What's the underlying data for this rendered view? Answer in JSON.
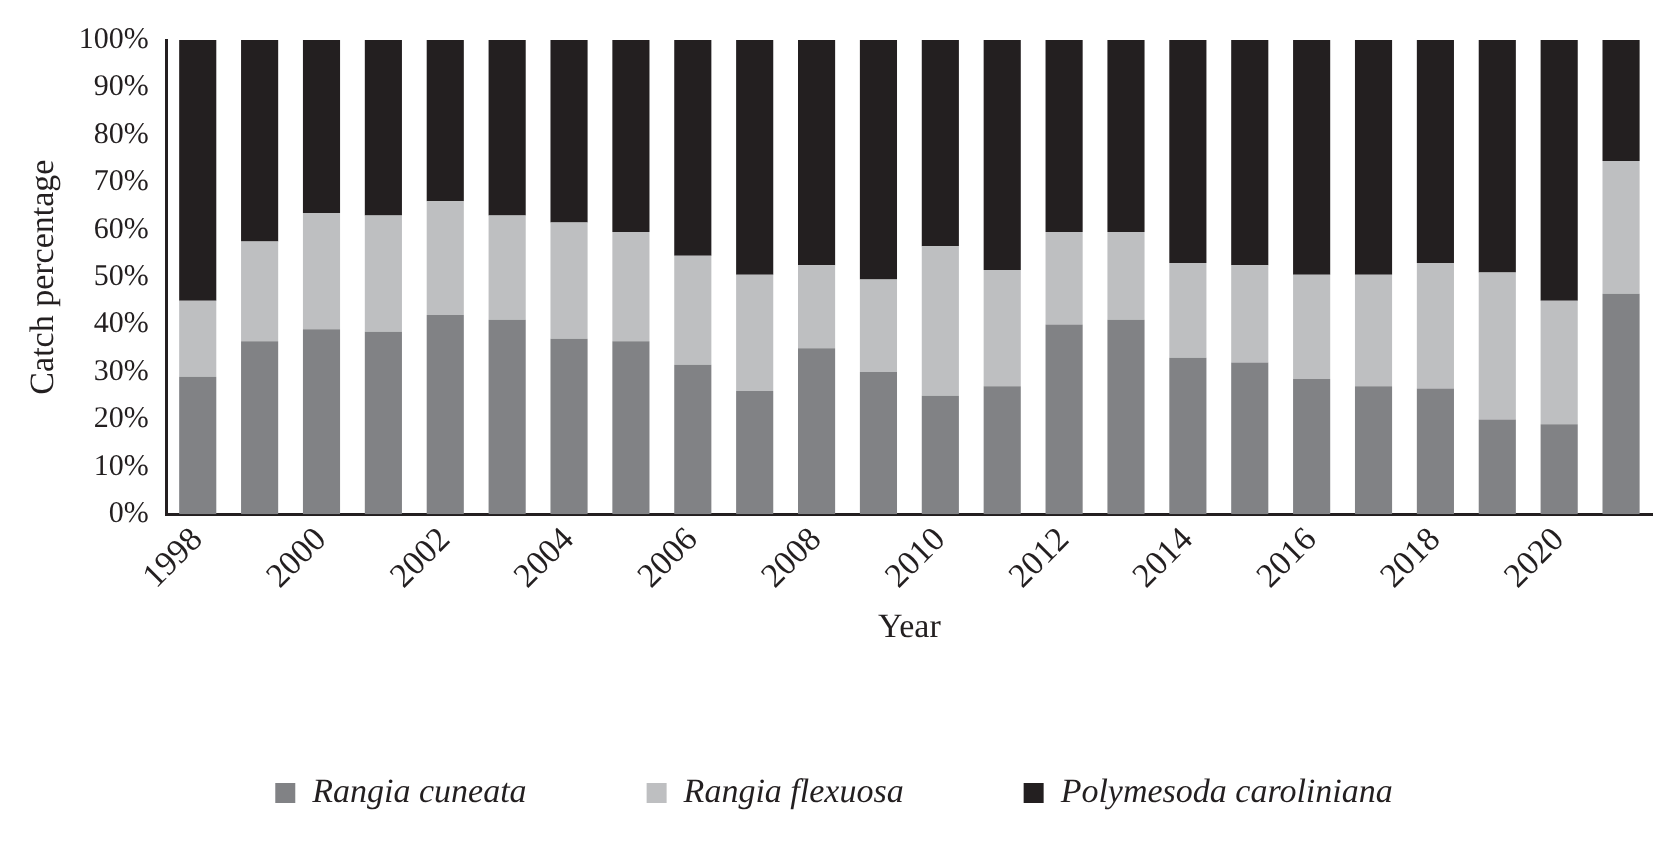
{
  "chart_data": {
    "type": "bar",
    "stacked": true,
    "xlabel": "Year",
    "ylabel": "Catch percentage",
    "legend": "bottom",
    "grid": false,
    "categories": [
      "1998",
      null,
      "2000",
      null,
      "2002",
      null,
      "2004",
      null,
      "2006",
      null,
      "2008",
      null,
      "2010",
      null,
      "2012",
      null,
      "2014",
      null,
      "2016",
      null,
      "2018",
      null,
      "2020",
      null
    ],
    "ylim": [
      0,
      100
    ],
    "yticks": [
      {
        "value": 0,
        "label": "0%"
      },
      {
        "value": 10,
        "label": "10%"
      },
      {
        "value": 20,
        "label": "20%"
      },
      {
        "value": 30,
        "label": "30%"
      },
      {
        "value": 40,
        "label": "40%"
      },
      {
        "value": 50,
        "label": "50%"
      },
      {
        "value": 60,
        "label": "60%"
      },
      {
        "value": 70,
        "label": "70%"
      },
      {
        "value": 80,
        "label": "80%"
      },
      {
        "value": 90,
        "label": "90%"
      },
      {
        "value": 100,
        "label": "100%"
      }
    ],
    "series": [
      {
        "name": "Rangia cuneata",
        "color": "#818285",
        "values": [
          29,
          36.5,
          39,
          38.5,
          42,
          41,
          37,
          36.5,
          31.5,
          26,
          35,
          30,
          25,
          27,
          40,
          41,
          33,
          32,
          28.5,
          27,
          26.5,
          20,
          19,
          46.5
        ]
      },
      {
        "name": "Rangia flexuosa",
        "color": "#bebfc1",
        "values": [
          16,
          21,
          24.5,
          24.5,
          24,
          22,
          24.5,
          23,
          23,
          24.5,
          17.5,
          19.5,
          31.5,
          24.5,
          19.5,
          18.5,
          20,
          20.5,
          22,
          23.5,
          26.5,
          31,
          26,
          28
        ]
      },
      {
        "name": "Polymesoda caroliniana",
        "color": "#231f20",
        "values": [
          55,
          42.5,
          36.5,
          37,
          34,
          37,
          38.5,
          40.5,
          45.5,
          49.5,
          47.5,
          50.5,
          43.5,
          48.5,
          40.5,
          40.5,
          47,
          47.5,
          49.5,
          49.5,
          47,
          49,
          55,
          25.5
        ]
      }
    ]
  }
}
